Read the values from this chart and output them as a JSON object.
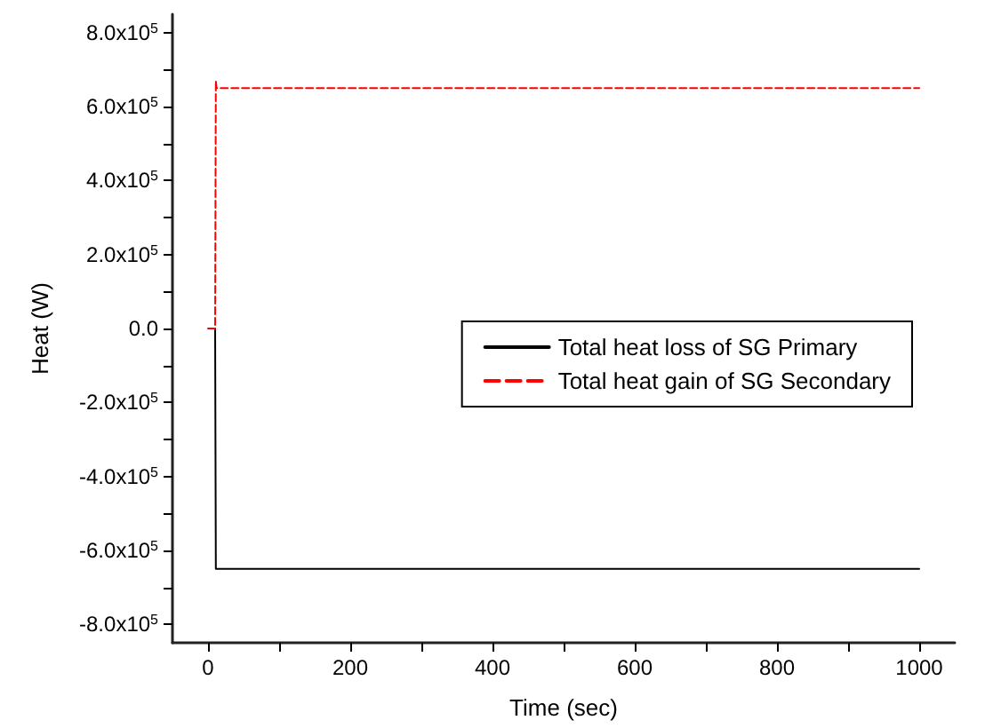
{
  "chart_data": {
    "type": "line",
    "xlabel": "Time (sec)",
    "ylabel": "Heat (W)",
    "xlim": [
      -50,
      1050
    ],
    "xticks": [
      0,
      {
        "value": 100,
        "label": null
      },
      200,
      {
        "value": 300,
        "label": null
      },
      400,
      {
        "value": 500,
        "label": null
      },
      600,
      {
        "value": 700,
        "label": null
      },
      800,
      {
        "value": 900,
        "label": null
      },
      1000
    ],
    "ylim": [
      -850000,
      850000
    ],
    "yticks": [
      {
        "value": -800000,
        "label": "-8.0x10$^{5}$"
      },
      {
        "value": -700000,
        "label": null
      },
      {
        "value": -600000,
        "label": "-6.0x10$^{5}$"
      },
      {
        "value": -500000,
        "label": null
      },
      {
        "value": -400000,
        "label": "-4.0x10$^{5}$"
      },
      {
        "value": -300000,
        "label": null
      },
      {
        "value": -200000,
        "label": "-2.0x10$^{5}$"
      },
      {
        "value": -100000,
        "label": null
      },
      {
        "value": 0,
        "label": "0.0"
      },
      {
        "value": 100000,
        "label": null
      },
      {
        "value": 200000,
        "label": "2.0x10$^{5}$"
      },
      {
        "value": 300000,
        "label": null
      },
      {
        "value": 400000,
        "label": "4.0x10$^{5}$"
      },
      {
        "value": 500000,
        "label": null
      },
      {
        "value": 600000,
        "label": "6.0x10$^{5}$"
      },
      {
        "value": 700000,
        "label": null
      },
      {
        "value": 800000,
        "label": "8.0x10$^{5}$"
      }
    ],
    "grid": false,
    "legend": "right",
    "marker": "none",
    "series": [
      {
        "name": "Total heat loss of SG Primary",
        "color": "#000000",
        "line_style": "solid",
        "x": [
          10,
          11,
          1000
        ],
        "values": [
          0,
          -650000,
          -650000
        ]
      },
      {
        "name": "Total heat gain of SG Secondary",
        "color": "#ff0000",
        "line_style": "dashed",
        "x": [
          0,
          10,
          11,
          12,
          1000
        ],
        "values": [
          0,
          0,
          670000,
          650000,
          650000
        ]
      }
    ]
  }
}
